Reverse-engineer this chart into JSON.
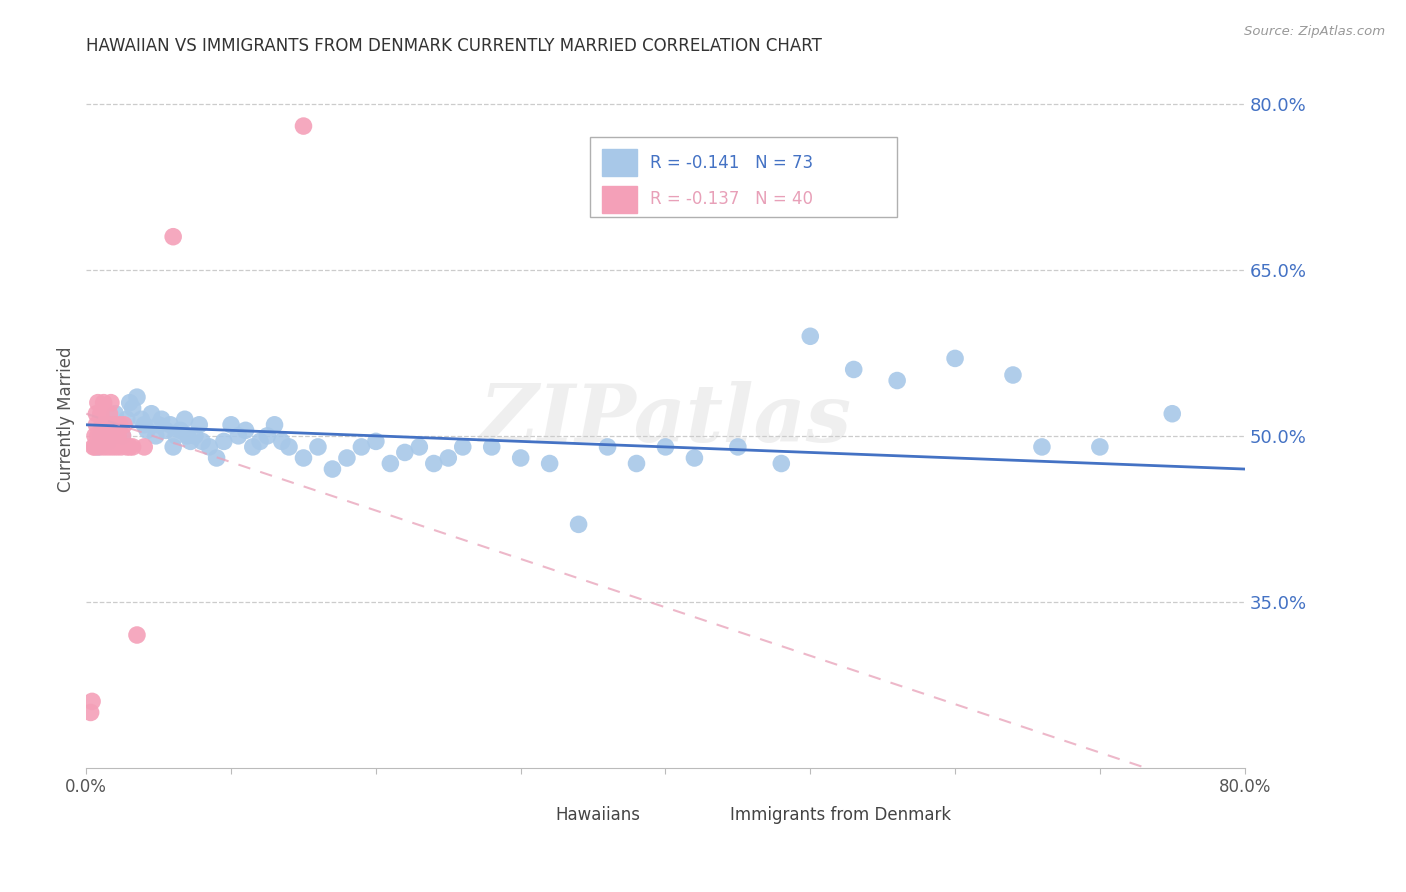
{
  "title": "HAWAIIAN VS IMMIGRANTS FROM DENMARK CURRENTLY MARRIED CORRELATION CHART",
  "source": "Source: ZipAtlas.com",
  "ylabel": "Currently Married",
  "right_ytick_vals": [
    0.35,
    0.5,
    0.65,
    0.8
  ],
  "right_ytick_labels": [
    "35.0%",
    "50.0%",
    "65.0%",
    "80.0%"
  ],
  "xlim": [
    0.0,
    0.8
  ],
  "ylim": [
    0.2,
    0.83
  ],
  "hawaiians_R": "-0.141",
  "hawaiians_N": "73",
  "denmark_R": "-0.137",
  "denmark_N": "40",
  "hawaiians_color": "#a8c8e8",
  "denmark_color": "#f4a0b8",
  "hawaiians_line_color": "#4472c4",
  "denmark_line_color": "#e8a0b8",
  "watermark": "ZIPatlas",
  "haw_x": [
    0.008,
    0.01,
    0.012,
    0.015,
    0.017,
    0.018,
    0.02,
    0.022,
    0.025,
    0.028,
    0.03,
    0.032,
    0.035,
    0.038,
    0.04,
    0.042,
    0.045,
    0.048,
    0.05,
    0.052,
    0.055,
    0.058,
    0.06,
    0.062,
    0.065,
    0.068,
    0.07,
    0.072,
    0.075,
    0.078,
    0.08,
    0.085,
    0.09,
    0.095,
    0.1,
    0.105,
    0.11,
    0.115,
    0.12,
    0.125,
    0.13,
    0.135,
    0.14,
    0.15,
    0.16,
    0.17,
    0.18,
    0.19,
    0.2,
    0.21,
    0.22,
    0.23,
    0.24,
    0.25,
    0.26,
    0.28,
    0.3,
    0.32,
    0.34,
    0.36,
    0.38,
    0.4,
    0.42,
    0.45,
    0.48,
    0.5,
    0.53,
    0.56,
    0.6,
    0.64,
    0.66,
    0.7,
    0.75
  ],
  "haw_y": [
    0.49,
    0.5,
    0.51,
    0.495,
    0.505,
    0.5,
    0.52,
    0.51,
    0.5,
    0.515,
    0.53,
    0.525,
    0.535,
    0.515,
    0.51,
    0.505,
    0.52,
    0.5,
    0.51,
    0.515,
    0.505,
    0.51,
    0.49,
    0.5,
    0.505,
    0.515,
    0.5,
    0.495,
    0.5,
    0.51,
    0.495,
    0.49,
    0.48,
    0.495,
    0.51,
    0.5,
    0.505,
    0.49,
    0.495,
    0.5,
    0.51,
    0.495,
    0.49,
    0.48,
    0.49,
    0.47,
    0.48,
    0.49,
    0.495,
    0.475,
    0.485,
    0.49,
    0.475,
    0.48,
    0.49,
    0.49,
    0.48,
    0.475,
    0.42,
    0.49,
    0.475,
    0.49,
    0.48,
    0.49,
    0.475,
    0.59,
    0.56,
    0.55,
    0.57,
    0.555,
    0.49,
    0.49,
    0.52
  ],
  "den_x": [
    0.003,
    0.004,
    0.005,
    0.006,
    0.006,
    0.007,
    0.007,
    0.008,
    0.008,
    0.009,
    0.01,
    0.01,
    0.011,
    0.012,
    0.012,
    0.013,
    0.013,
    0.014,
    0.015,
    0.015,
    0.016,
    0.016,
    0.017,
    0.018,
    0.018,
    0.019,
    0.02,
    0.021,
    0.022,
    0.023,
    0.024,
    0.025,
    0.026,
    0.028,
    0.03,
    0.032,
    0.035,
    0.04,
    0.06,
    0.15
  ],
  "den_y": [
    0.25,
    0.26,
    0.49,
    0.49,
    0.5,
    0.51,
    0.52,
    0.5,
    0.53,
    0.49,
    0.5,
    0.52,
    0.51,
    0.53,
    0.49,
    0.5,
    0.51,
    0.5,
    0.49,
    0.51,
    0.5,
    0.52,
    0.53,
    0.49,
    0.5,
    0.51,
    0.5,
    0.49,
    0.5,
    0.51,
    0.49,
    0.5,
    0.51,
    0.49,
    0.49,
    0.49,
    0.32,
    0.49,
    0.68,
    0.78
  ]
}
